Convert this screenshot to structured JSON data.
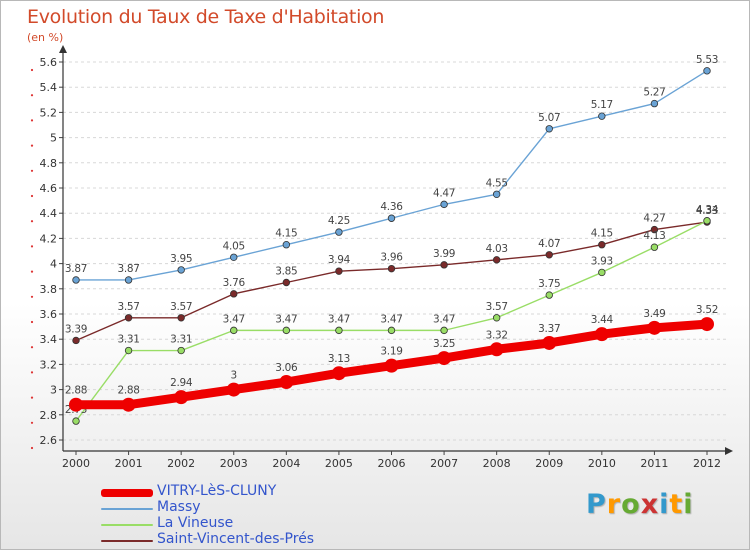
{
  "chart_data": {
    "type": "line",
    "title": "Evolution du Taux de Taxe d'Habitation",
    "subtitle": "(en %)",
    "x": [
      "2000",
      "2001",
      "2002",
      "2003",
      "2004",
      "2005",
      "2006",
      "2007",
      "2008",
      "2009",
      "2010",
      "2011",
      "2012"
    ],
    "yticks": [
      "2.6",
      "2.8",
      "3",
      "3.2",
      "3.4",
      "3.6",
      "3.8",
      "4",
      "4.2",
      "4.4",
      "4.6",
      "4.8",
      "5",
      "5.2",
      "5.4",
      "5.6"
    ],
    "ylim": [
      2.6,
      5.6
    ],
    "grid": "horizontal dashed",
    "legend_position": "bottom-left",
    "series": [
      {
        "name": "VITRY-LèS-CLUNY",
        "color": "#ee0000",
        "values": [
          2.88,
          2.88,
          2.94,
          3.0,
          3.06,
          3.13,
          3.19,
          3.25,
          3.32,
          3.37,
          3.44,
          3.49,
          3.52
        ],
        "labels": [
          "2.88",
          "2.88",
          "2.94",
          "3",
          "3.06",
          "3.13",
          "3.19",
          "3.25",
          "3.32",
          "3.37",
          "3.44",
          "3.49",
          "3.52"
        ]
      },
      {
        "name": "Massy",
        "color": "#6aa3d5",
        "values": [
          3.87,
          3.87,
          3.95,
          4.05,
          4.15,
          4.25,
          4.36,
          4.47,
          4.55,
          5.07,
          5.17,
          5.27,
          5.53
        ],
        "labels": [
          "3.87",
          "3.87",
          "3.95",
          "4.05",
          "4.15",
          "4.25",
          "4.36",
          "4.47",
          "4.55",
          "5.07",
          "5.17",
          "5.27",
          "5.53"
        ]
      },
      {
        "name": "La Vineuse",
        "color": "#99dd66",
        "values": [
          2.75,
          3.31,
          3.31,
          3.47,
          3.47,
          3.47,
          3.47,
          3.47,
          3.57,
          3.75,
          3.93,
          4.13,
          4.34
        ],
        "labels": [
          "2.75",
          "3.31",
          "3.31",
          "3.47",
          "3.47",
          "3.47",
          "3.47",
          "3.47",
          "3.57",
          "3.75",
          "3.93",
          "4.13",
          "4.34"
        ]
      },
      {
        "name": "Saint-Vincent-des-Prés",
        "color": "#7a2a2a",
        "values": [
          3.39,
          3.57,
          3.57,
          3.76,
          3.85,
          3.94,
          3.96,
          3.99,
          4.03,
          4.07,
          4.15,
          4.27,
          4.33
        ],
        "labels": [
          "3.39",
          "3.57",
          "3.57",
          "3.76",
          "3.85",
          "3.94",
          "3.96",
          "3.99",
          "4.03",
          "4.07",
          "4.15",
          "4.27",
          "4.33"
        ]
      }
    ]
  },
  "brand": {
    "name": "Proxiti",
    "letters": [
      {
        "ch": "P",
        "color": "#3399cc"
      },
      {
        "ch": "r",
        "color": "#ff9900"
      },
      {
        "ch": "o",
        "color": "#66aa33"
      },
      {
        "ch": "x",
        "color": "#cc3333"
      },
      {
        "ch": "i",
        "color": "#3399cc"
      },
      {
        "ch": "t",
        "color": "#ff9900"
      },
      {
        "ch": "i",
        "color": "#66aa33"
      }
    ]
  }
}
